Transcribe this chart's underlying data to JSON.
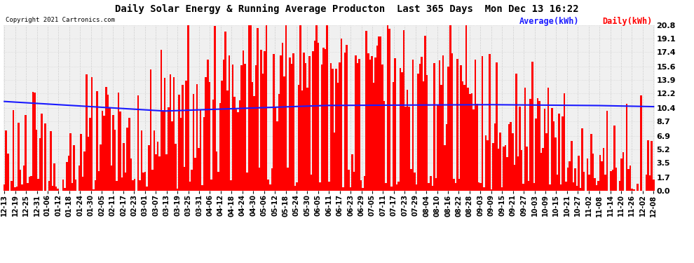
{
  "title": "Daily Solar Energy & Running Average Producton  Last 365 Days  Mon Dec 13 16:22",
  "copyright": "Copyright 2021 Cartronics.com",
  "legend_avg": "Average(kWh)",
  "legend_daily": "Daily(kWh)",
  "bar_color": "#ff0000",
  "avg_line_color": "#1a1aff",
  "background_color": "#ffffff",
  "plot_bg_color": "#f0f0f0",
  "grid_color": "#cccccc",
  "yticks": [
    0.0,
    1.7,
    3.5,
    5.2,
    6.9,
    8.7,
    10.4,
    12.2,
    13.9,
    15.6,
    17.4,
    19.1,
    20.8
  ],
  "ymax": 20.8,
  "ymin": 0.0,
  "n_days": 365,
  "xtick_labels": [
    "12-13",
    "12-19",
    "12-25",
    "12-31",
    "01-06",
    "01-12",
    "01-18",
    "01-24",
    "01-30",
    "02-05",
    "02-11",
    "02-17",
    "02-23",
    "03-01",
    "03-07",
    "03-13",
    "03-19",
    "03-25",
    "03-31",
    "04-06",
    "04-12",
    "04-18",
    "04-24",
    "04-30",
    "05-06",
    "05-12",
    "05-18",
    "05-24",
    "05-30",
    "06-05",
    "06-11",
    "06-17",
    "06-23",
    "06-29",
    "07-05",
    "07-11",
    "07-17",
    "07-23",
    "07-29",
    "08-04",
    "08-10",
    "08-16",
    "08-22",
    "08-28",
    "09-03",
    "09-09",
    "09-15",
    "09-21",
    "09-27",
    "10-03",
    "10-09",
    "10-15",
    "10-21",
    "10-27",
    "11-02",
    "11-08",
    "11-14",
    "11-20",
    "11-26",
    "12-02",
    "12-08"
  ],
  "figsize": [
    9.9,
    3.75
  ],
  "dpi": 100
}
